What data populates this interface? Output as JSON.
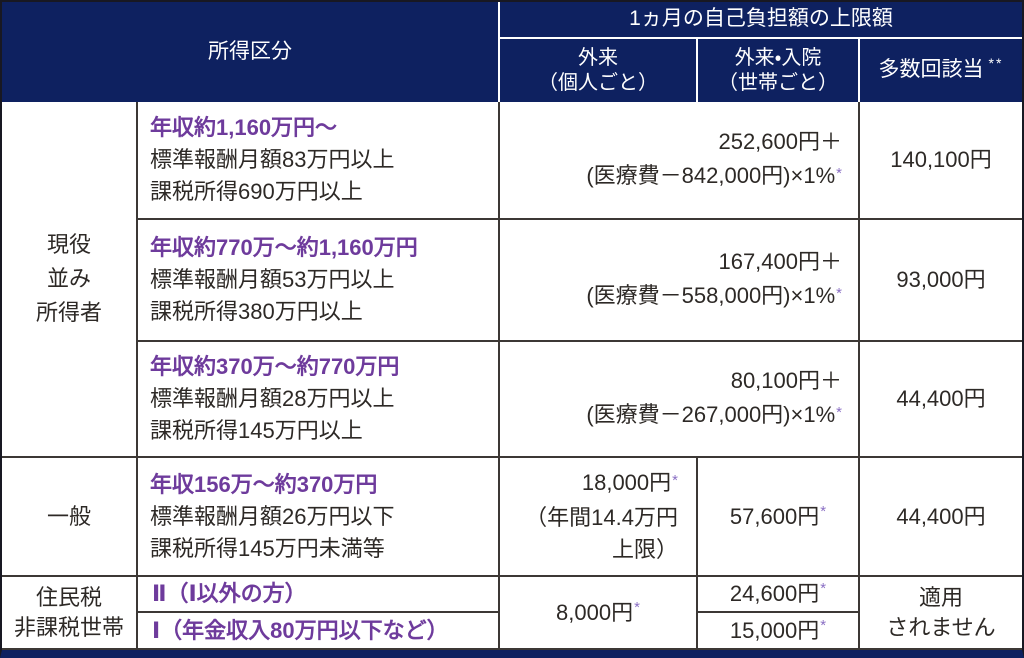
{
  "table": {
    "header": {
      "income_category": "所得区分",
      "monthly_cap_title": "1ヵ月の自己負担額の上限額",
      "outpatient": {
        "line1": "外来",
        "line2": "（個人ごと）"
      },
      "outpatient_inpatient": {
        "line1": "外来・入院",
        "line2": "（世帯ごと）"
      },
      "multiple": {
        "label": "多数回該当",
        "note": "**"
      }
    },
    "groups": {
      "senior": {
        "lines": [
          "現役",
          "並み",
          "所得者"
        ]
      },
      "general": {
        "label": "一般"
      },
      "tax_exempt": {
        "lines": [
          "住民税",
          "非課税世帯"
        ]
      }
    },
    "senior_rows": [
      {
        "bracket_title": "年収約1,160万円～",
        "bracket_line2": "標準報酬月額83万円以上",
        "bracket_line3": "課税所得690万円以上",
        "cap_line1": "252,600円＋",
        "cap_line2": "(医療費－842,000円)×1%",
        "cap_note": "*",
        "multiple_value": "140,100円"
      },
      {
        "bracket_title": "年収約770万～約1,160万円",
        "bracket_line2": "標準報酬月額53万円以上",
        "bracket_line3": "課税所得380万円以上",
        "cap_line1": "167,400円＋",
        "cap_line2": "(医療費－558,000円)×1%",
        "cap_note": "*",
        "multiple_value": "93,000円"
      },
      {
        "bracket_title": "年収約370万～約770万円",
        "bracket_line2": "標準報酬月額28万円以上",
        "bracket_line3": "課税所得145万円以上",
        "cap_line1": "80,100円＋",
        "cap_line2": "(医療費－267,000円)×1%",
        "cap_note": "*",
        "multiple_value": "44,400円"
      }
    ],
    "general_row": {
      "bracket_title": "年収156万～約370万円",
      "bracket_line2": "標準報酬月額26万円以下",
      "bracket_line3": "課税所得145万円未満等",
      "outpatient_line1": "18,000円",
      "outpatient_note": "*",
      "outpatient_line2": "（年間14.4万円",
      "outpatient_line3": "上限）",
      "household_value": "57,600円",
      "household_note": "*",
      "multiple_value": "44,400円"
    },
    "tax_exempt_rows": {
      "row_2": {
        "label": "Ⅱ（Ⅰ以外の方）",
        "household_value": "24,600円",
        "household_note": "*"
      },
      "row_1": {
        "label": "Ⅰ（年金収入80万円以下など）",
        "household_value": "15,000円",
        "household_note": "*"
      },
      "outpatient_value": "8,000円",
      "outpatient_note": "*",
      "multiple_lines": [
        "適用",
        "されません"
      ]
    }
  },
  "colors": {
    "navy": "#0e2160",
    "purple": "#6e3b9c",
    "note_purple": "#8a6fc4",
    "text": "#2d2926",
    "border": "#3c3835"
  }
}
